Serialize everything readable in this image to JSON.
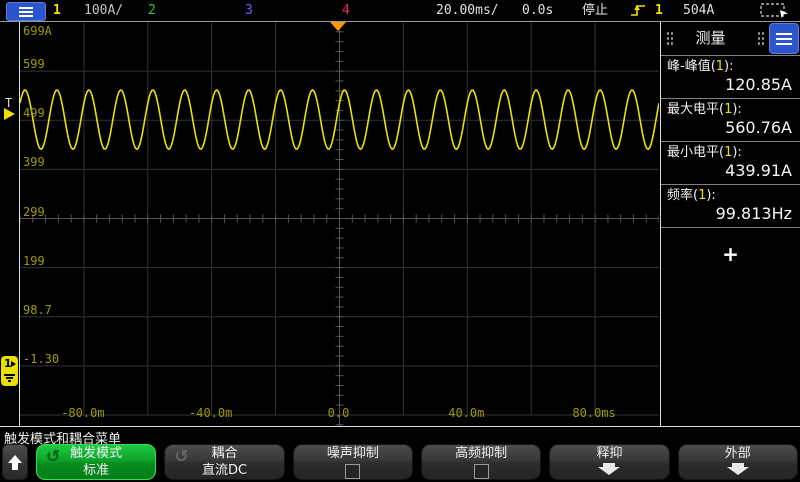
{
  "topbar": {
    "channel1": {
      "num": "1",
      "scale": "100A/"
    },
    "channel2": {
      "num": "2"
    },
    "channel3": {
      "num": "3"
    },
    "channel4": {
      "num": "4"
    },
    "timebase": "20.00ms/",
    "delay": "0.0s",
    "run_state": "停止",
    "trigger_channel": "1",
    "trigger_level": "504A"
  },
  "graticule": {
    "y_labels": [
      "699A",
      "599",
      "499",
      "399",
      "299",
      "199",
      "98.7",
      "-1.30"
    ],
    "x_labels": [
      "-80.0m",
      "-40.0m",
      "0.0",
      "40.0m",
      "80.0ms"
    ],
    "trigger_marker": "T",
    "ground_channel": "1"
  },
  "waveform": {
    "type": "sine",
    "cycles_on_screen": 20,
    "color": "#e8e400"
  },
  "measure_panel": {
    "title": "测量",
    "rows": [
      {
        "pre": "峰-峰值(",
        "ch": "1",
        "post": "):",
        "value": "120.85A"
      },
      {
        "pre": "最大电平(",
        "ch": "1",
        "post": "):",
        "value": "560.76A"
      },
      {
        "pre": "最小电平(",
        "ch": "1",
        "post": "):",
        "value": "439.91A"
      },
      {
        "pre": "频率(",
        "ch": "1",
        "post": "):",
        "value": "99.813Hz"
      }
    ],
    "add_label": "+"
  },
  "menu": {
    "title": "触发模式和耦合菜单",
    "softkeys": [
      {
        "label1": "触发模式",
        "label2": "标准",
        "type": "cycle",
        "active": true
      },
      {
        "label1": "耦合",
        "label2": "直流DC",
        "type": "cycle",
        "active": false
      },
      {
        "label1": "噪声抑制",
        "type": "checkbox",
        "checked": false
      },
      {
        "label1": "高频抑制",
        "type": "checkbox",
        "checked": false
      },
      {
        "label1": "释抑",
        "type": "arrow"
      },
      {
        "label1": "外部",
        "type": "arrow"
      }
    ]
  },
  "colors": {
    "ch1": "#f0e000",
    "ch2": "#33cc33",
    "ch3": "#5566ff",
    "ch4": "#ee2277",
    "trace": "#e8e400",
    "trigger_pos_marker": "#ff9900",
    "menu_blue": "#2b55cc"
  }
}
